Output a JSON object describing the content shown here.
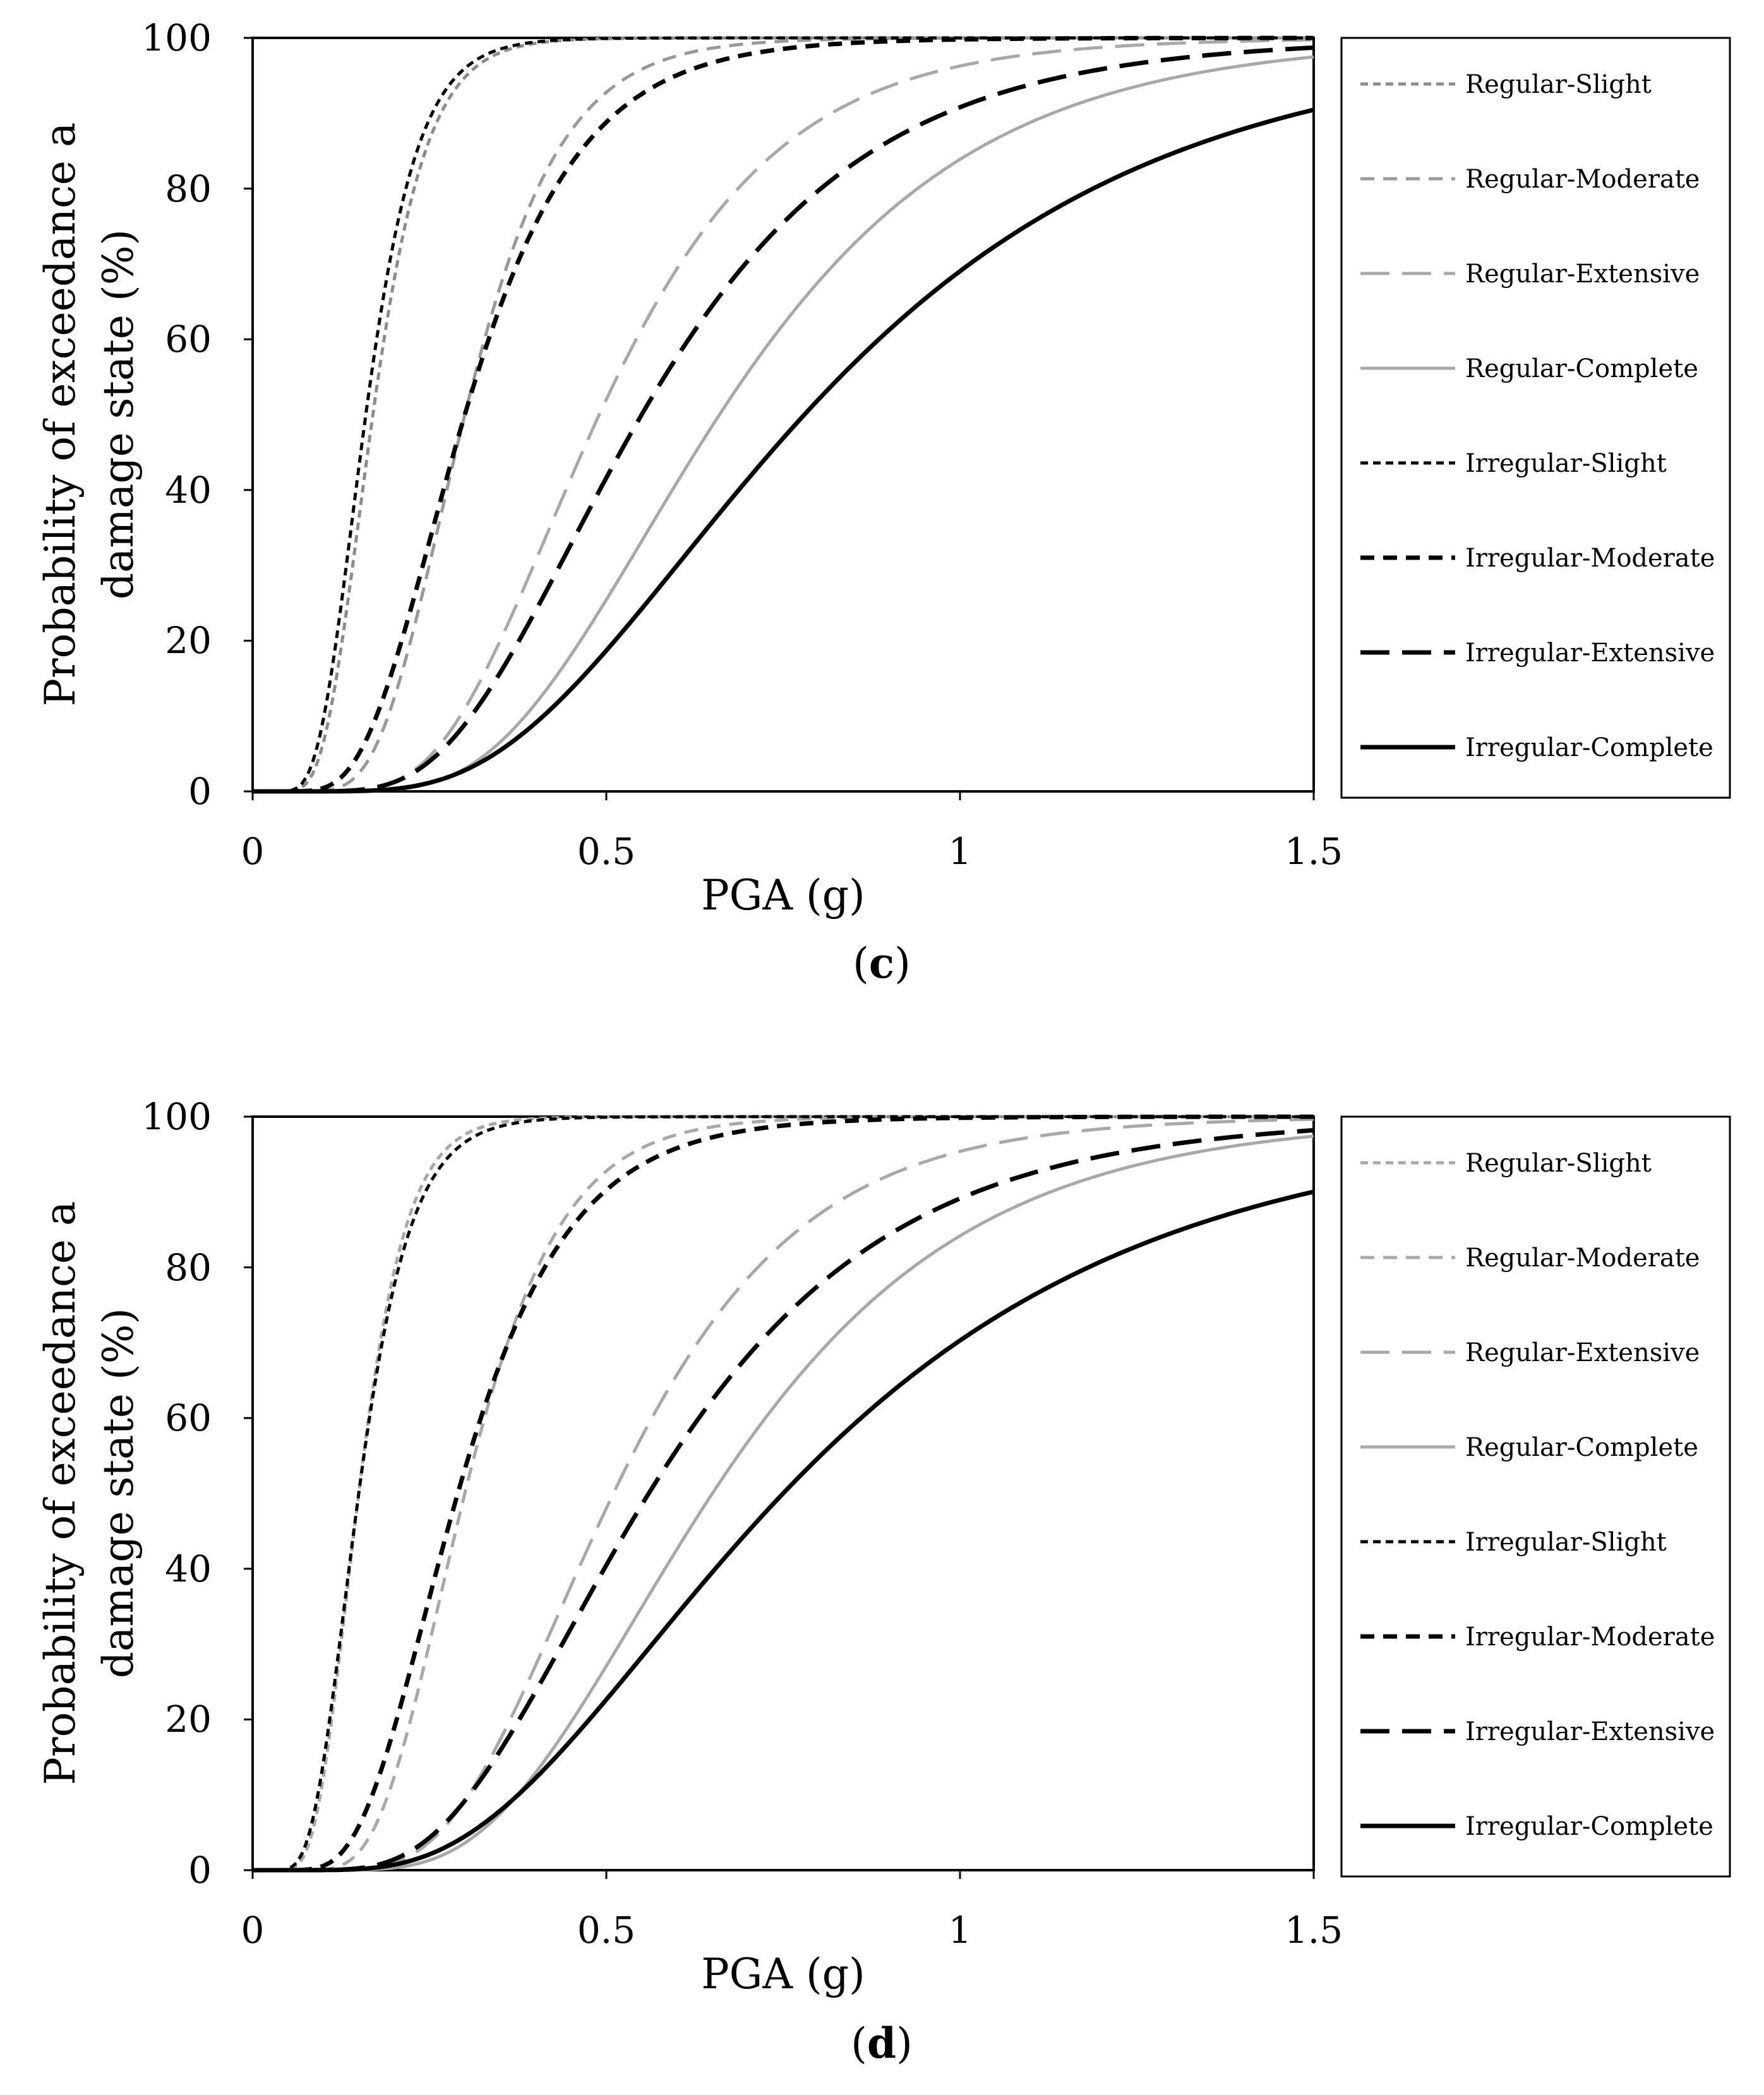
{
  "chart_data": [
    {
      "type": "line",
      "panel_label": "c",
      "xlabel": "PGA (g)",
      "ylabel_lines": [
        "Probability of exceedance a",
        "damage state (%)"
      ],
      "xlim": [
        0,
        1.5
      ],
      "ylim": [
        0,
        100
      ],
      "x_ticks": [
        0,
        0.5,
        1,
        1.5
      ],
      "x_tick_labels": [
        "0",
        "0.5",
        "1",
        "1.5"
      ],
      "y_ticks": [
        0,
        20,
        40,
        60,
        80,
        100
      ],
      "y_tick_labels": [
        "0",
        "20",
        "40",
        "60",
        "80",
        "100"
      ],
      "grid": false,
      "legend_position": "right",
      "series": [
        {
          "name": "Regular-Slight",
          "color": "#8c8c8c",
          "dash": "short",
          "width": "medium",
          "median": 0.17,
          "beta": 0.35
        },
        {
          "name": "Regular-Moderate",
          "color": "#999999",
          "dash": "medium",
          "width": "medium",
          "median": 0.3,
          "beta": 0.35
        },
        {
          "name": "Regular-Extensive",
          "color": "#a8a8a8",
          "dash": "long",
          "width": "medium",
          "median": 0.49,
          "beta": 0.4
        },
        {
          "name": "Regular-Complete",
          "color": "#a8a8a8",
          "dash": "solid",
          "width": "medium",
          "median": 0.66,
          "beta": 0.42
        },
        {
          "name": "Irregular-Slight",
          "color": "#000000",
          "dash": "short",
          "width": "medium",
          "median": 0.16,
          "beta": 0.36
        },
        {
          "name": "Irregular-Moderate",
          "color": "#000000",
          "dash": "medium",
          "width": "thick",
          "median": 0.3,
          "beta": 0.42
        },
        {
          "name": "Irregular-Extensive",
          "color": "#000000",
          "dash": "long",
          "width": "thick",
          "median": 0.55,
          "beta": 0.45
        },
        {
          "name": "Irregular-Complete",
          "color": "#000000",
          "dash": "solid",
          "width": "thick",
          "median": 0.78,
          "beta": 0.5
        }
      ]
    },
    {
      "type": "line",
      "panel_label": "d",
      "xlabel": "PGA (g)",
      "ylabel_lines": [
        "Probability of exceedance a",
        "damage state (%)"
      ],
      "xlim": [
        0,
        1.5
      ],
      "ylim": [
        0,
        100
      ],
      "x_ticks": [
        0,
        0.5,
        1,
        1.5
      ],
      "x_tick_labels": [
        "0",
        "0.5",
        "1",
        "1.5"
      ],
      "y_ticks": [
        0,
        20,
        40,
        60,
        80,
        100
      ],
      "y_tick_labels": [
        "0",
        "20",
        "40",
        "60",
        "80",
        "100"
      ],
      "grid": false,
      "legend_position": "right",
      "series": [
        {
          "name": "Regular-Slight",
          "color": "#a8a8a8",
          "dash": "short",
          "width": "medium",
          "median": 0.15,
          "beta": 0.35
        },
        {
          "name": "Regular-Moderate",
          "color": "#a8a8a8",
          "dash": "medium",
          "width": "medium",
          "median": 0.3,
          "beta": 0.35
        },
        {
          "name": "Regular-Extensive",
          "color": "#a8a8a8",
          "dash": "long",
          "width": "medium",
          "median": 0.51,
          "beta": 0.4
        },
        {
          "name": "Regular-Complete",
          "color": "#a8a8a8",
          "dash": "solid",
          "width": "medium",
          "median": 0.65,
          "beta": 0.43
        },
        {
          "name": "Irregular-Slight",
          "color": "#000000",
          "dash": "short",
          "width": "medium",
          "median": 0.15,
          "beta": 0.38
        },
        {
          "name": "Irregular-Moderate",
          "color": "#000000",
          "dash": "medium",
          "width": "thick",
          "median": 0.29,
          "beta": 0.42
        },
        {
          "name": "Irregular-Extensive",
          "color": "#000000",
          "dash": "long",
          "width": "thick",
          "median": 0.56,
          "beta": 0.47
        },
        {
          "name": "Irregular-Complete",
          "color": "#000000",
          "dash": "solid",
          "width": "thick",
          "median": 0.75,
          "beta": 0.54
        }
      ]
    }
  ]
}
